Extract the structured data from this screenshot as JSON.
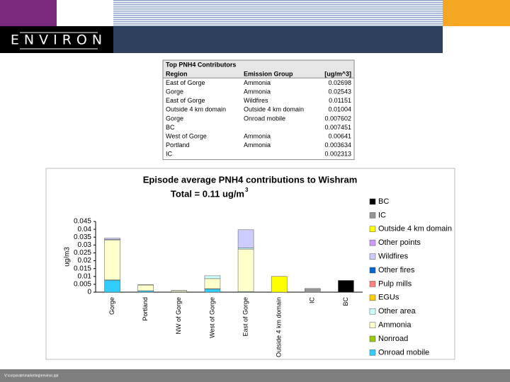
{
  "header": {
    "logo": "ENVIRON"
  },
  "table": {
    "title": "Top PNH4 Contributors",
    "columns": [
      "Region",
      "Emission Group",
      "[ug/m^3]"
    ],
    "rows": [
      [
        "East of Gorge",
        "Ammonia",
        "0.02698"
      ],
      [
        "Gorge",
        "Ammonia",
        "0.02543"
      ],
      [
        "East of Gorge",
        "Wildfires",
        "0.01151"
      ],
      [
        "Outside 4 km domain",
        "Outside 4 km domain",
        "0.01004"
      ],
      [
        "Gorge",
        "Onroad mobile",
        "0.007602"
      ],
      [
        "BC",
        "",
        "0.007451"
      ],
      [
        "West of Gorge",
        "Ammonia",
        "0.00641"
      ],
      [
        "Portland",
        "Ammonia",
        "0.003634"
      ],
      [
        "IC",
        "",
        "0.002313"
      ]
    ]
  },
  "chart_data": {
    "type": "stacked_bar",
    "title": "Episode average PNH4 contributions to Wishram",
    "subtitle": "Total = 0.11 ug/m",
    "subtitle_sup": "3",
    "y_label": "ug/m3",
    "categories": [
      "Gorge",
      "Portland",
      "NW of Gorge",
      "West of Gorge",
      "East of Gorge",
      "Outside 4 km domain",
      "IC",
      "BC"
    ],
    "ylim": [
      0,
      0.045
    ],
    "yticks": [
      0,
      0.005,
      0.01,
      0.015,
      0.02,
      0.025,
      0.03,
      0.035,
      0.04,
      0.045
    ],
    "legend": "right",
    "series": [
      {
        "name": "Onroad mobile",
        "color": "#33ccff",
        "values": [
          0.007602,
          0.0008,
          0.0002,
          0.002,
          0.0003,
          0,
          0,
          0
        ]
      },
      {
        "name": "Nonroad",
        "color": "#99cc00",
        "values": [
          0.0002,
          0.0001,
          0,
          0.0002,
          0.0001,
          0,
          0,
          0
        ]
      },
      {
        "name": "Ammonia",
        "color": "#ffffcc",
        "values": [
          0.02543,
          0.003634,
          0.0008,
          0.00641,
          0.02698,
          0,
          0,
          0
        ]
      },
      {
        "name": "Other area",
        "color": "#ccffff",
        "values": [
          0.0003,
          0.0002,
          0.0001,
          0.0018,
          0.0008,
          0,
          0,
          0
        ]
      },
      {
        "name": "EGUs",
        "color": "#ffcc00",
        "values": [
          0,
          0,
          0,
          0,
          0,
          0,
          0,
          0
        ]
      },
      {
        "name": "Pulp mills",
        "color": "#ff8080",
        "values": [
          0,
          0,
          0,
          0,
          0,
          0,
          0,
          0
        ]
      },
      {
        "name": "Other fires",
        "color": "#0066cc",
        "values": [
          0,
          0,
          0,
          0,
          0,
          0,
          0,
          0
        ]
      },
      {
        "name": "Wildfires",
        "color": "#ccccff",
        "values": [
          0.0008,
          0,
          0,
          0,
          0.01151,
          0,
          0,
          0
        ]
      },
      {
        "name": "Other points",
        "color": "#cc99ff",
        "values": [
          0,
          0,
          0,
          0,
          0,
          0,
          0,
          0
        ]
      },
      {
        "name": "Outside 4 km domain",
        "color": "#ffff00",
        "values": [
          0,
          0,
          0,
          0,
          0,
          0.01004,
          0,
          0
        ]
      },
      {
        "name": "IC",
        "color": "#969696",
        "values": [
          0,
          0,
          0,
          0,
          0,
          0,
          0.002313,
          0
        ]
      },
      {
        "name": "BC",
        "color": "#000000",
        "values": [
          0,
          0,
          0,
          0,
          0,
          0,
          0,
          0.007451
        ]
      }
    ]
  },
  "footer": {
    "text": "V:\\corporate\\marketing\\environ.ppt"
  }
}
